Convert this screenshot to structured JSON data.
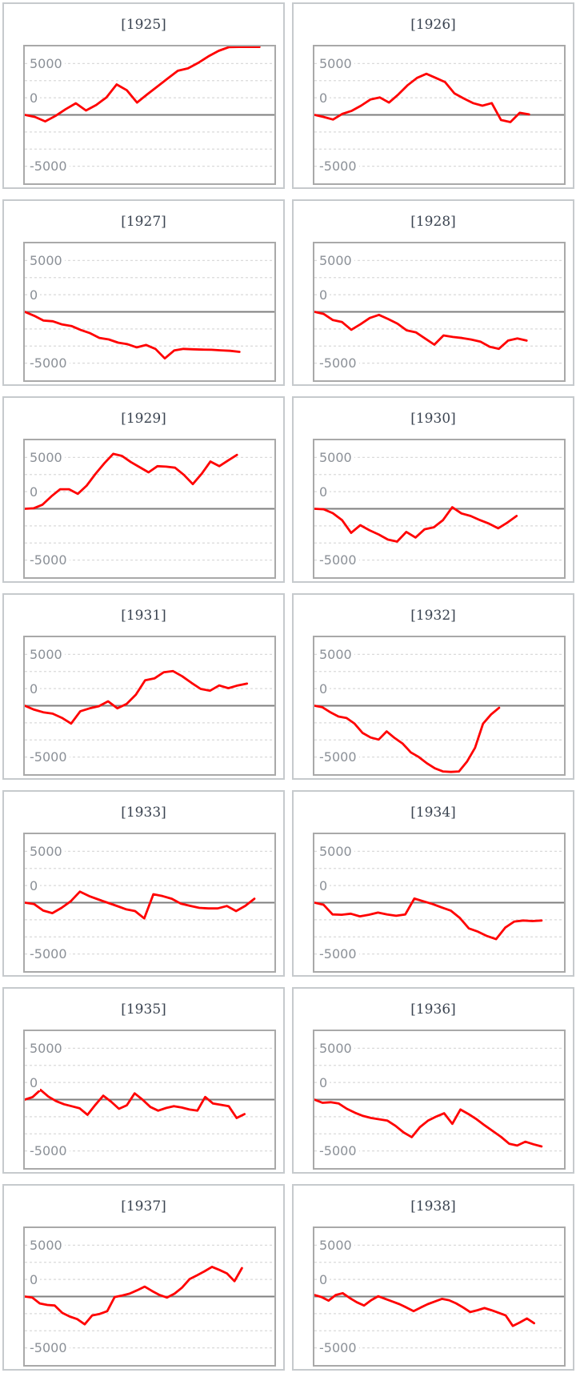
{
  "colors": {
    "series_red": "#ff0000",
    "panel_border": "#c6cacd",
    "plot_border": "#a9a9a9",
    "grid_dashed": "#dadada",
    "zero_line": "#7f7f7f",
    "tick_label": "#8b9097",
    "title_text": "#3a4350"
  },
  "axis": {
    "tick_labels": [
      "5000",
      "0",
      "-5000"
    ],
    "tick_values": [
      5000,
      0,
      -5000
    ],
    "ylim": [
      -6667,
      6667
    ],
    "grid_step": 1667,
    "grid_style": "dashed-horizontal",
    "zero_line_style": "solid"
  },
  "chart_data": [
    {
      "type": "line",
      "title": "[1925]",
      "year": 1925,
      "x_extent_fraction": 0.94,
      "values": [
        0,
        -200,
        -630,
        -100,
        550,
        1130,
        430,
        970,
        1700,
        2960,
        2400,
        1200,
        2000,
        2770,
        3540,
        4300,
        4530,
        5070,
        5700,
        6240,
        6600,
        6620,
        6620,
        6620
      ]
    },
    {
      "type": "line",
      "title": "[1926]",
      "year": 1926,
      "x_extent_fraction": 0.86,
      "values": [
        0,
        -200,
        -450,
        100,
        400,
        900,
        1500,
        1700,
        1200,
        2000,
        2900,
        3600,
        4000,
        3600,
        3200,
        2100,
        1600,
        1150,
        900,
        1150,
        -500,
        -700,
        200,
        50
      ]
    },
    {
      "type": "line",
      "title": "[1927]",
      "year": 1927,
      "x_extent_fraction": 0.86,
      "values": [
        0,
        -380,
        -850,
        -920,
        -1230,
        -1380,
        -1770,
        -2080,
        -2540,
        -2690,
        -3000,
        -3150,
        -3460,
        -3230,
        -3610,
        -4540,
        -3770,
        -3610,
        -3650,
        -3680,
        -3700,
        -3750,
        -3800,
        -3900
      ]
    },
    {
      "type": "line",
      "title": "[1928]",
      "year": 1928,
      "x_extent_fraction": 0.85,
      "values": [
        0,
        -200,
        -800,
        -1000,
        -1750,
        -1200,
        -600,
        -300,
        -700,
        -1150,
        -1800,
        -2000,
        -2600,
        -3200,
        -2300,
        -2450,
        -2550,
        -2700,
        -2900,
        -3400,
        -3600,
        -2800,
        -2600,
        -2800
      ]
    },
    {
      "type": "line",
      "title": "[1929]",
      "year": 1929,
      "x_extent_fraction": 0.85,
      "values": [
        0,
        50,
        400,
        1200,
        1900,
        1900,
        1450,
        2250,
        3400,
        4430,
        5350,
        5150,
        4550,
        4050,
        3550,
        4150,
        4100,
        4000,
        3300,
        2400,
        3400,
        4600,
        4150,
        4700,
        5250
      ]
    },
    {
      "type": "line",
      "title": "[1930]",
      "year": 1930,
      "x_extent_fraction": 0.81,
      "values": [
        0,
        -50,
        -430,
        -1100,
        -2350,
        -1600,
        -2100,
        -2500,
        -3000,
        -3200,
        -2250,
        -2800,
        -2000,
        -1800,
        -1100,
        150,
        -450,
        -700,
        -1100,
        -1450,
        -1900,
        -1350,
        -700
      ]
    },
    {
      "type": "line",
      "title": "[1931]",
      "year": 1931,
      "x_extent_fraction": 0.89,
      "values": [
        0,
        -380,
        -640,
        -770,
        -1180,
        -1740,
        -540,
        -260,
        -50,
        430,
        -260,
        180,
        1080,
        2480,
        2660,
        3250,
        3380,
        2870,
        2230,
        1640,
        1460,
        1970,
        1710,
        1970,
        2150
      ]
    },
    {
      "type": "line",
      "title": "[1932]",
      "year": 1932,
      "x_extent_fraction": 0.74,
      "values": [
        0,
        -150,
        -650,
        -1050,
        -1200,
        -1750,
        -2650,
        -3100,
        -3300,
        -2500,
        -3150,
        -3700,
        -4550,
        -5000,
        -5600,
        -6100,
        -6400,
        -6450,
        -6400,
        -5450,
        -4100,
        -1750,
        -850,
        -200
      ]
    },
    {
      "type": "line",
      "title": "[1933]",
      "year": 1933,
      "x_extent_fraction": 0.92,
      "values": [
        0,
        -130,
        -770,
        -1020,
        -510,
        130,
        1080,
        640,
        310,
        0,
        -310,
        -640,
        -820,
        -1540,
        820,
        640,
        380,
        -100,
        -310,
        -510,
        -560,
        -560,
        -330,
        -820,
        -310,
        380
      ]
    },
    {
      "type": "line",
      "title": "[1934]",
      "year": 1934,
      "x_extent_fraction": 0.91,
      "values": [
        0,
        -200,
        -1150,
        -1180,
        -1080,
        -1330,
        -1180,
        -970,
        -1150,
        -1280,
        -1150,
        400,
        130,
        -130,
        -460,
        -770,
        -1480,
        -2510,
        -2820,
        -3250,
        -3560,
        -2430,
        -1840,
        -1740,
        -1790,
        -1740
      ]
    },
    {
      "type": "line",
      "title": "[1935]",
      "year": 1935,
      "x_extent_fraction": 0.88,
      "values": [
        0,
        250,
        950,
        300,
        -150,
        -450,
        -650,
        -850,
        -1480,
        -500,
        380,
        -200,
        -900,
        -550,
        610,
        0,
        -720,
        -1080,
        -820,
        -640,
        -770,
        -970,
        -1080,
        260,
        -380,
        -510,
        -640,
        -1790,
        -1410
      ]
    },
    {
      "type": "line",
      "title": "[1936]",
      "year": 1936,
      "x_extent_fraction": 0.91,
      "values": [
        0,
        -310,
        -260,
        -380,
        -900,
        -1280,
        -1590,
        -1790,
        -1920,
        -2050,
        -2560,
        -3200,
        -3660,
        -2690,
        -2050,
        -1660,
        -1330,
        -2360,
        -970,
        -1410,
        -1920,
        -2510,
        -3070,
        -3630,
        -4300,
        -4480,
        -4100,
        -4350,
        -4560
      ]
    },
    {
      "type": "line",
      "title": "[1937]",
      "year": 1937,
      "x_extent_fraction": 0.87,
      "values": [
        0,
        -100,
        -670,
        -820,
        -870,
        -1590,
        -1950,
        -2200,
        -2710,
        -1840,
        -1690,
        -1430,
        -50,
        100,
        280,
        610,
        970,
        540,
        150,
        -100,
        280,
        870,
        1690,
        2070,
        2460,
        2890,
        2590,
        2250,
        1500,
        2770
      ]
    },
    {
      "type": "line",
      "title": "[1938]",
      "year": 1938,
      "x_extent_fraction": 0.88,
      "values": [
        150,
        -50,
        -400,
        150,
        330,
        -150,
        -560,
        -870,
        -360,
        30,
        -230,
        -480,
        -740,
        -1070,
        -1430,
        -1070,
        -740,
        -480,
        -230,
        -360,
        -660,
        -1070,
        -1510,
        -1330,
        -1120,
        -1330,
        -1580,
        -1840,
        -2860,
        -2530,
        -2140,
        -2600
      ]
    }
  ]
}
